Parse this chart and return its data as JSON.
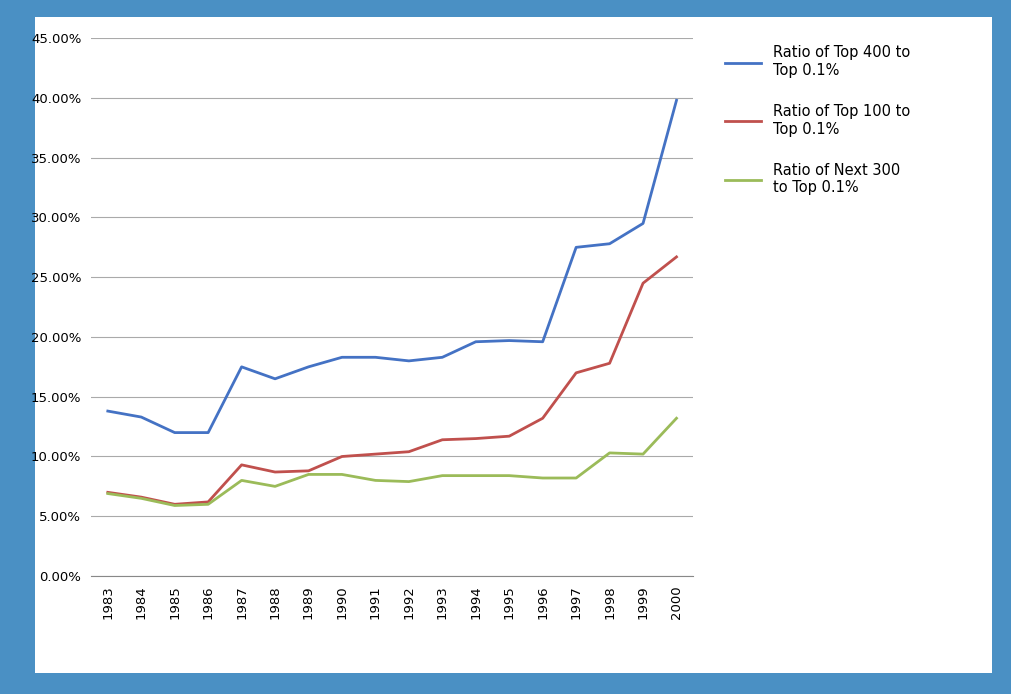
{
  "years": [
    1983,
    1984,
    1985,
    1986,
    1987,
    1988,
    1989,
    1990,
    1991,
    1992,
    1993,
    1994,
    1995,
    1996,
    1997,
    1998,
    1999,
    2000
  ],
  "top400": [
    0.138,
    0.133,
    0.12,
    0.12,
    0.175,
    0.165,
    0.175,
    0.183,
    0.183,
    0.18,
    0.183,
    0.196,
    0.197,
    0.196,
    0.275,
    0.278,
    0.295,
    0.398
  ],
  "top100": [
    0.07,
    0.066,
    0.06,
    0.062,
    0.093,
    0.087,
    0.088,
    0.1,
    0.102,
    0.104,
    0.114,
    0.115,
    0.117,
    0.132,
    0.17,
    0.178,
    0.245,
    0.267
  ],
  "next300": [
    0.069,
    0.065,
    0.059,
    0.06,
    0.08,
    0.075,
    0.085,
    0.085,
    0.08,
    0.079,
    0.084,
    0.084,
    0.084,
    0.082,
    0.082,
    0.103,
    0.102,
    0.132
  ],
  "blue_color": "#4472C4",
  "red_color": "#C0504D",
  "green_color": "#9BBB59",
  "legend_top400": "Ratio of Top 400 to\nTop 0.1%",
  "legend_top100": "Ratio of Top 100 to\nTop 0.1%",
  "legend_next300": "Ratio of Next 300\nto Top 0.1%",
  "ylim": [
    0.0,
    0.45
  ],
  "yticks": [
    0.0,
    0.05,
    0.1,
    0.15,
    0.2,
    0.25,
    0.3,
    0.35,
    0.4,
    0.45
  ],
  "background_color": "#FFFFFF",
  "outer_background": "#4A90C4",
  "grid_color": "#AAAAAA",
  "line_width": 2.0,
  "border_color": "#3A7AB5"
}
